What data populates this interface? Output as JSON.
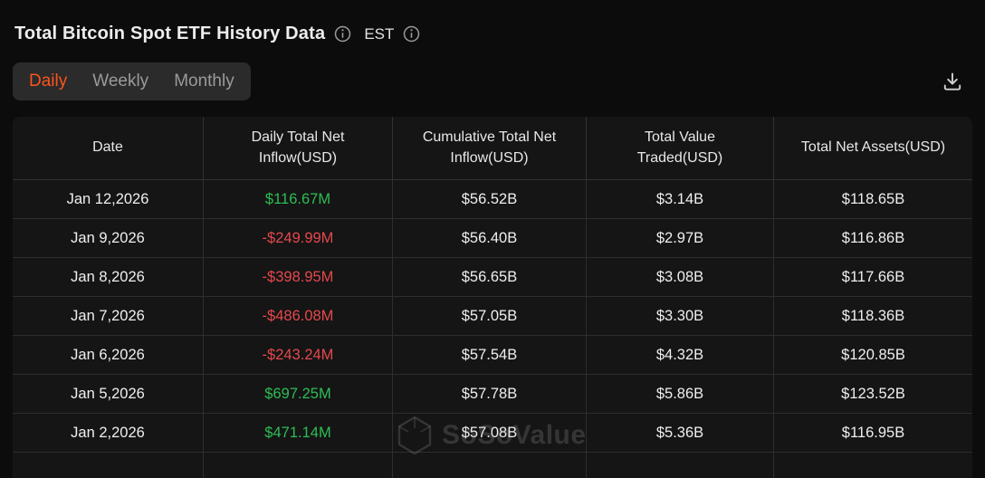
{
  "header": {
    "title": "Total Bitcoin Spot ETF History Data",
    "timezone_label": "EST",
    "icons": {
      "title_info": "info-icon",
      "timezone_info": "info-icon"
    }
  },
  "toolbar": {
    "tabs": [
      {
        "label": "Daily",
        "active": true
      },
      {
        "label": "Weekly",
        "active": false
      },
      {
        "label": "Monthly",
        "active": false
      }
    ],
    "download_icon": "download-icon"
  },
  "table": {
    "columns": [
      "Date",
      "Daily Total Net Inflow(USD)",
      "Cumulative Total Net Inflow(USD)",
      "Total Value Traded(USD)",
      "Total Net Assets(USD)"
    ],
    "rows": [
      [
        "Jan 12,2026",
        "$116.67M",
        "$56.52B",
        "$3.14B",
        "$118.65B"
      ],
      [
        "Jan 9,2026",
        "-$249.99M",
        "$56.40B",
        "$2.97B",
        "$116.86B"
      ],
      [
        "Jan 8,2026",
        "-$398.95M",
        "$56.65B",
        "$3.08B",
        "$117.66B"
      ],
      [
        "Jan 7,2026",
        "-$486.08M",
        "$57.05B",
        "$3.30B",
        "$118.36B"
      ],
      [
        "Jan 6,2026",
        "-$243.24M",
        "$57.54B",
        "$4.32B",
        "$120.85B"
      ],
      [
        "Jan 5,2026",
        "$697.25M",
        "$57.78B",
        "$5.86B",
        "$123.52B"
      ],
      [
        "Jan 2,2026",
        "$471.14M",
        "$57.08B",
        "$5.36B",
        "$116.95B"
      ]
    ]
  },
  "watermark": {
    "text": "SoSoValue",
    "logo_icon": "sosovalue-logo-icon"
  },
  "colors": {
    "accent": "#fa541c",
    "positive": "#2ebd55",
    "negative": "#e5484d"
  }
}
